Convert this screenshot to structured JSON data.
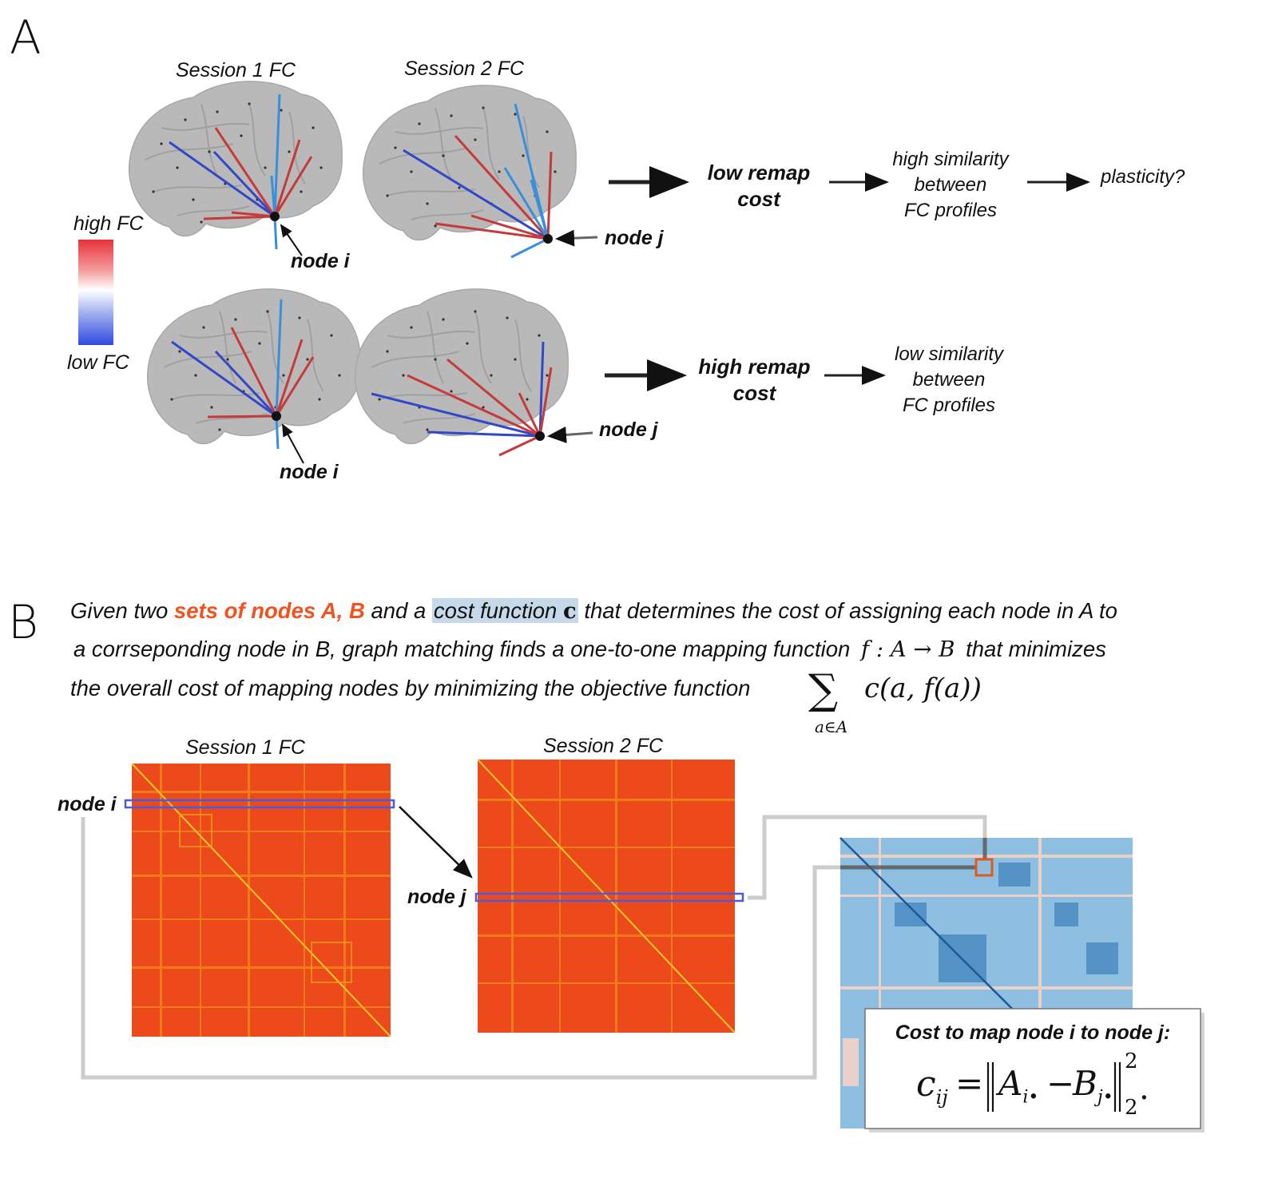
{
  "panel_a": {
    "letter": "A",
    "session1_title": "Session 1 FC",
    "session2_title": "Session 2 FC",
    "legend_high": "high FC",
    "legend_low": "low FC",
    "node_i_top": "node i",
    "node_j_top": "node j",
    "node_i_bottom": "node i",
    "node_j_bottom": "node j",
    "low_cost_l1": "low remap",
    "low_cost_l2": "cost",
    "high_sim_l1": "high similarity",
    "high_sim_l2": "between",
    "high_sim_l3": "FC profiles",
    "plasticity": "plasticity?",
    "high_cost_l1": "high remap",
    "high_cost_l2": "cost",
    "low_sim_l1": "low similarity",
    "low_sim_l2": "between",
    "low_sim_l3": "FC profiles",
    "colors": {
      "high": "#e8323a",
      "low": "#2f49e0",
      "edge_red": "#c63a3a",
      "edge_blue": "#3248c8",
      "edge_lightblue": "#3a8fdc"
    }
  },
  "panel_b": {
    "letter": "B",
    "line1_a": "Given two ",
    "line1_sets": "sets of nodes A, B",
    "line1_b": " and a ",
    "line1_cost": "cost function ",
    "line1_c": "c",
    "line1_c2": " that determines the cost of assigning each node in A to",
    "line2_a": "a corrseponding node in B, graph matching finds a one-to-one mapping function ",
    "line2_math": "f : A → B",
    "line2_b": " that minimizes",
    "line3_a": "the overall cost of mapping nodes by minimizing the objective function ",
    "sum_symbol": "∑",
    "sum_body": "c(a, f(a))",
    "sum_sub": "a∈A",
    "session1_title": "Session 1 FC",
    "session2_title": "Session 2 FC",
    "node_i": "node i",
    "node_j": "node j",
    "cost_title": "Cost to map node i to node j:",
    "eq_lhs": "c",
    "eq_lhs_sub": "ij",
    "eq_eq": "=",
    "eq_A": "A",
    "eq_A_sub": "i•",
    "eq_minus": "−",
    "eq_B": "B",
    "eq_B_sub": "j•",
    "eq_sup": "2",
    "eq_sub": "2",
    "eq_dot": ".",
    "colors": {
      "orange_text": "#f0531f",
      "highlight": "#c6d9ea",
      "row_box": "#4a5be0",
      "cost_box": "#e05a1e",
      "connector": "#cccccc"
    }
  }
}
